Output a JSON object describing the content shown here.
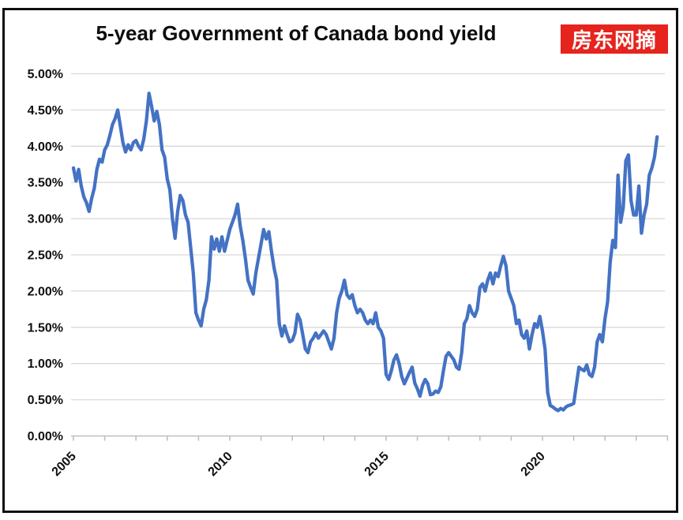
{
  "header": {
    "title": "5-year Government of Canada bond yield",
    "badge_label": "房东网摘",
    "badge_bg_color": "#e6231d",
    "badge_text_color": "#ffffff"
  },
  "chart_data": {
    "type": "line",
    "title": "5-year Government of Canada bond yield",
    "xlabel": "",
    "ylabel": "",
    "legend_position": "none",
    "grid": true,
    "gridline_color": "#d9d9d9",
    "axis_color": "#bfbfbf",
    "xlim": [
      2005,
      2024
    ],
    "ylim": [
      0,
      5
    ],
    "x_minor_tick_years": 1,
    "x_labeled_ticks": [
      {
        "label": "2005",
        "year": 2005
      },
      {
        "label": "2010",
        "year": 2010
      },
      {
        "label": "2015",
        "year": 2015
      },
      {
        "label": "2020",
        "year": 2020
      }
    ],
    "y_ticks": [
      {
        "label": "5.00%",
        "value": 5.0
      },
      {
        "label": "4.50%",
        "value": 4.5
      },
      {
        "label": "4.00%",
        "value": 4.0
      },
      {
        "label": "3.50%",
        "value": 3.5
      },
      {
        "label": "3.00%",
        "value": 3.0
      },
      {
        "label": "2.50%",
        "value": 2.5
      },
      {
        "label": "2.00%",
        "value": 2.0
      },
      {
        "label": "1.50%",
        "value": 1.5
      },
      {
        "label": "1.00%",
        "value": 1.0
      },
      {
        "label": "0.50%",
        "value": 0.5
      },
      {
        "label": "0.00%",
        "value": 0.0
      }
    ],
    "series": [
      {
        "name": "5-year Government of Canada bond yield (%)",
        "color": "#4472c4",
        "x_start_year": 2005.0,
        "x_step_months": 1,
        "values": [
          3.7,
          3.52,
          3.68,
          3.45,
          3.3,
          3.22,
          3.1,
          3.28,
          3.42,
          3.68,
          3.82,
          3.78,
          3.95,
          4.02,
          4.15,
          4.3,
          4.38,
          4.5,
          4.28,
          4.05,
          3.92,
          4.02,
          3.95,
          4.05,
          4.08,
          4.0,
          3.95,
          4.1,
          4.35,
          4.73,
          4.55,
          4.35,
          4.48,
          4.3,
          3.95,
          3.85,
          3.55,
          3.4,
          3.0,
          2.73,
          3.1,
          3.32,
          3.25,
          3.05,
          2.95,
          2.6,
          2.25,
          1.7,
          1.6,
          1.52,
          1.75,
          1.88,
          2.15,
          2.75,
          2.58,
          2.72,
          2.55,
          2.75,
          2.55,
          2.7,
          2.85,
          2.95,
          3.05,
          3.2,
          2.9,
          2.7,
          2.45,
          2.15,
          2.05,
          1.96,
          2.25,
          2.45,
          2.65,
          2.85,
          2.72,
          2.82,
          2.55,
          2.32,
          2.15,
          1.55,
          1.38,
          1.52,
          1.4,
          1.3,
          1.32,
          1.42,
          1.68,
          1.6,
          1.4,
          1.2,
          1.15,
          1.3,
          1.35,
          1.42,
          1.35,
          1.4,
          1.45,
          1.4,
          1.3,
          1.2,
          1.35,
          1.7,
          1.9,
          2.0,
          2.15,
          1.95,
          1.9,
          1.95,
          1.8,
          1.7,
          1.75,
          1.7,
          1.6,
          1.55,
          1.6,
          1.55,
          1.7,
          1.5,
          1.45,
          1.35,
          0.85,
          0.78,
          0.9,
          1.05,
          1.12,
          1.0,
          0.82,
          0.72,
          0.8,
          0.88,
          0.95,
          0.73,
          0.65,
          0.55,
          0.7,
          0.78,
          0.72,
          0.57,
          0.58,
          0.62,
          0.6,
          0.68,
          0.9,
          1.1,
          1.15,
          1.1,
          1.05,
          0.95,
          0.92,
          1.15,
          1.55,
          1.62,
          1.8,
          1.7,
          1.65,
          1.75,
          2.05,
          2.1,
          2.0,
          2.15,
          2.25,
          2.1,
          2.25,
          2.2,
          2.35,
          2.48,
          2.35,
          2.0,
          1.9,
          1.8,
          1.55,
          1.6,
          1.4,
          1.35,
          1.45,
          1.2,
          1.4,
          1.55,
          1.5,
          1.65,
          1.45,
          1.2,
          0.6,
          0.42,
          0.4,
          0.37,
          0.35,
          0.38,
          0.36,
          0.4,
          0.42,
          0.43,
          0.45,
          0.7,
          0.95,
          0.92,
          0.9,
          0.98,
          0.85,
          0.82,
          0.95,
          1.3,
          1.4,
          1.3,
          1.62,
          1.85,
          2.4,
          2.7,
          2.6,
          3.6,
          2.95,
          3.15,
          3.8,
          3.88,
          3.25,
          3.05,
          3.05,
          3.45,
          2.8,
          3.05,
          3.2,
          3.6,
          3.7,
          3.85,
          4.13
        ]
      }
    ]
  }
}
